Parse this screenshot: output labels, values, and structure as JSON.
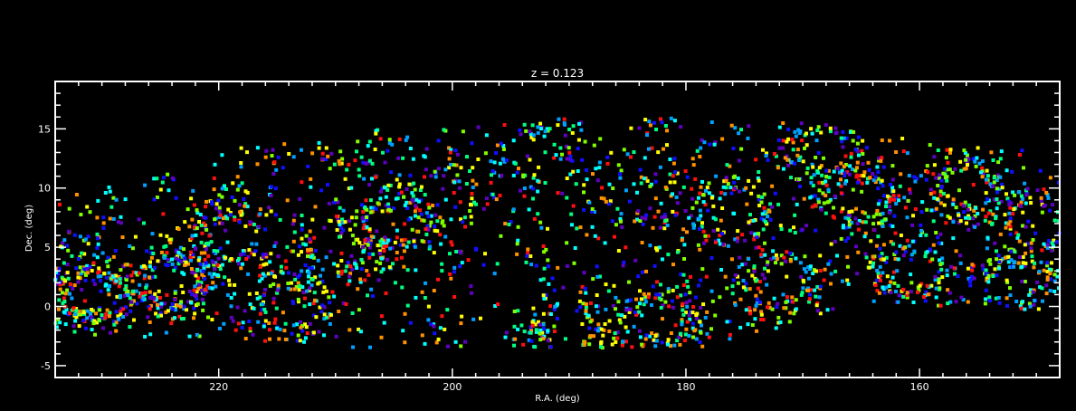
{
  "chart_data": {
    "type": "scatter",
    "title": "z = 0.123",
    "xlabel": "R.A. (deg)",
    "ylabel": "Dec. (deg)",
    "xlim": [
      234,
      148
    ],
    "ylim": [
      -6,
      19
    ],
    "x_ticks": [
      220,
      200,
      180,
      160
    ],
    "y_ticks": [
      -5,
      0,
      5,
      10,
      15
    ],
    "x_minor_step": 2,
    "y_minor_step": 1,
    "grid": false,
    "legend": "none",
    "background_color": "#000000",
    "axis_color": "#ffffff",
    "marker": "square",
    "color_scale": [
      "#1010ff",
      "#00a0ff",
      "#00ffff",
      "#00ff80",
      "#80ff00",
      "#ffff00",
      "#ff9000",
      "#ff1010",
      "#6000c0"
    ],
    "point_count_estimate": 3200,
    "survey_footprint": {
      "dec_upper": [
        [
          234,
          10
        ],
        [
          228,
          11
        ],
        [
          222,
          12.5
        ],
        [
          218,
          13.5
        ],
        [
          212,
          14
        ],
        [
          206,
          15
        ],
        [
          200,
          15
        ],
        [
          195,
          15.5
        ],
        [
          190,
          16
        ],
        [
          184,
          16
        ],
        [
          178,
          16
        ],
        [
          172,
          16
        ],
        [
          166,
          15
        ],
        [
          160,
          14
        ],
        [
          154,
          13.5
        ],
        [
          148,
          13
        ]
      ],
      "dec_lower": [
        [
          234,
          -2.5
        ],
        [
          228,
          -2.5
        ],
        [
          222,
          -3
        ],
        [
          214,
          -3
        ],
        [
          208,
          -3.5
        ],
        [
          200,
          -3.5
        ],
        [
          190,
          -3.5
        ],
        [
          182,
          -3.5
        ],
        [
          176,
          -3.5
        ],
        [
          170,
          -1
        ],
        [
          166,
          0
        ],
        [
          160,
          0
        ],
        [
          154,
          0
        ],
        [
          148,
          -0.5
        ]
      ]
    },
    "structure_clusters": [
      {
        "ra": 224,
        "dec": 2,
        "weight": 3
      },
      {
        "ra": 231,
        "dec": 1,
        "weight": 3
      },
      {
        "ra": 219,
        "dec": 6,
        "weight": 2
      },
      {
        "ra": 214,
        "dec": 0,
        "weight": 2
      },
      {
        "ra": 210,
        "dec": 5,
        "weight": 2
      },
      {
        "ra": 208,
        "dec": 14,
        "weight": 1
      },
      {
        "ra": 205,
        "dec": 7,
        "weight": 2
      },
      {
        "ra": 201,
        "dec": 9,
        "weight": 1
      },
      {
        "ra": 193,
        "dec": 13,
        "weight": 1
      },
      {
        "ra": 190,
        "dec": -2,
        "weight": 2
      },
      {
        "ra": 184,
        "dec": 9,
        "weight": 1
      },
      {
        "ra": 182,
        "dec": -1,
        "weight": 2
      },
      {
        "ra": 176,
        "dec": 8,
        "weight": 2
      },
      {
        "ra": 172,
        "dec": 2,
        "weight": 2
      },
      {
        "ra": 168,
        "dec": 13,
        "weight": 2
      },
      {
        "ra": 165,
        "dec": 9,
        "weight": 2
      },
      {
        "ra": 161,
        "dec": 3,
        "weight": 2
      },
      {
        "ra": 156,
        "dec": 10,
        "weight": 2
      },
      {
        "ra": 152,
        "dec": 2,
        "weight": 2
      },
      {
        "ra": 150,
        "dec": 7,
        "weight": 2
      }
    ]
  }
}
